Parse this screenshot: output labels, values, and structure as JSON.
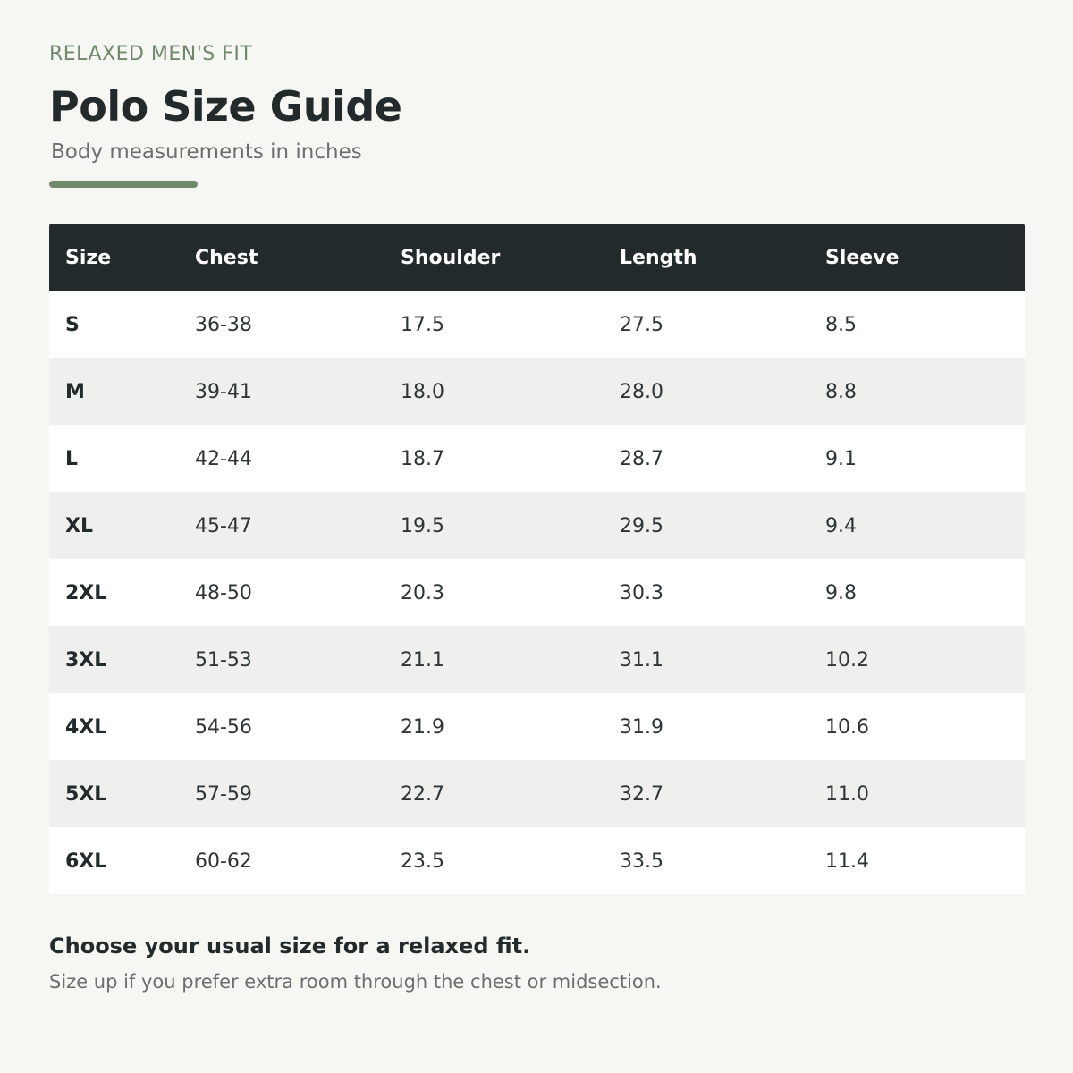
{
  "header": {
    "eyebrow": "RELAXED MEN'S FIT",
    "title": "Polo Size Guide",
    "subtitle": "Body measurements in inches"
  },
  "table": {
    "columns": [
      "Size",
      "Chest",
      "Shoulder",
      "Length",
      "Sleeve"
    ],
    "rows": [
      [
        "S",
        "36-38",
        "17.5",
        "27.5",
        "8.5"
      ],
      [
        "M",
        "39-41",
        "18.0",
        "28.0",
        "8.8"
      ],
      [
        "L",
        "42-44",
        "18.7",
        "28.7",
        "9.1"
      ],
      [
        "XL",
        "45-47",
        "19.5",
        "29.5",
        "9.4"
      ],
      [
        "2XL",
        "48-50",
        "20.3",
        "30.3",
        "9.8"
      ],
      [
        "3XL",
        "51-53",
        "21.1",
        "31.1",
        "10.2"
      ],
      [
        "4XL",
        "54-56",
        "21.9",
        "31.9",
        "10.6"
      ],
      [
        "5XL",
        "57-59",
        "22.7",
        "32.7",
        "11.0"
      ],
      [
        "6XL",
        "60-62",
        "23.5",
        "33.5",
        "11.4"
      ]
    ]
  },
  "footer": {
    "note": "Choose your usual size for a relaxed fit.",
    "tip": "Size up if you prefer extra room through the chest or midsection."
  },
  "colors": {
    "background": "#f6f6f3",
    "accent": "#6f8a6b",
    "header_bg": "#222a2c",
    "row_alt": "#eff0ed"
  }
}
